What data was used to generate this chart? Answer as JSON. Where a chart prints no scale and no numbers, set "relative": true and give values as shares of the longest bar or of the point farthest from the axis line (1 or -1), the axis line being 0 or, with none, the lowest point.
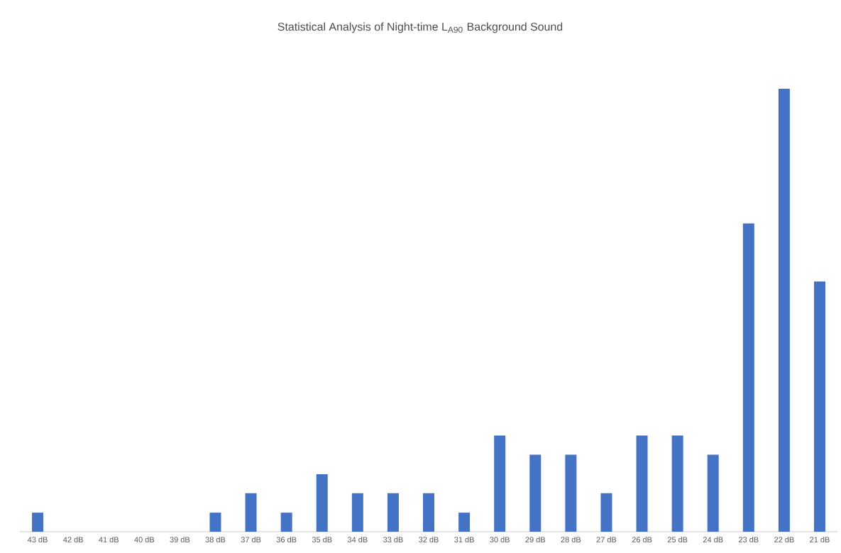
{
  "chart_data": {
    "type": "bar",
    "title": "Statistical Analysis of Night-time L$_{A90}$ Background Sound",
    "relative": true,
    "color": "#4472c4",
    "categories": [
      "43 dB",
      "42 dB",
      "41 dB",
      "40 dB",
      "39 dB",
      "38 dB",
      "37 dB",
      "36 dB",
      "35 dB",
      "34 dB",
      "33 dB",
      "32 dB",
      "31 dB",
      "30 dB",
      "29 dB",
      "28 dB",
      "27 dB",
      "26 dB",
      "25 dB",
      "24 dB",
      "23 dB",
      "22 dB",
      "21 dB"
    ],
    "values": [
      0.043,
      0,
      0,
      0,
      0,
      0.043,
      0.087,
      0.043,
      0.13,
      0.087,
      0.087,
      0.087,
      0.043,
      0.217,
      0.174,
      0.174,
      0.087,
      0.217,
      0.217,
      0.174,
      0.696,
      1,
      0.565
    ]
  }
}
